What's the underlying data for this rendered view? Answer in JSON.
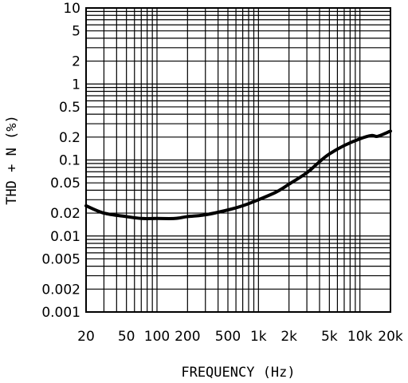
{
  "chart_data": {
    "type": "line",
    "title": "",
    "xlabel": "FREQUENCY (Hz)",
    "ylabel": "THD + N (%)",
    "x_scale": "log",
    "y_scale": "log",
    "xlim": [
      20,
      20000
    ],
    "ylim": [
      0.001,
      10
    ],
    "grid": true,
    "x_ticks": [
      {
        "value": 20,
        "label": "20"
      },
      {
        "value": 50,
        "label": "50"
      },
      {
        "value": 100,
        "label": "100"
      },
      {
        "value": 200,
        "label": "200"
      },
      {
        "value": 500,
        "label": "500"
      },
      {
        "value": 1000,
        "label": "1k"
      },
      {
        "value": 2000,
        "label": "2k"
      },
      {
        "value": 5000,
        "label": "5k"
      },
      {
        "value": 10000,
        "label": "10k"
      },
      {
        "value": 20000,
        "label": "20k"
      }
    ],
    "y_ticks": [
      {
        "value": 10,
        "label": "10"
      },
      {
        "value": 5,
        "label": "5"
      },
      {
        "value": 2,
        "label": "2"
      },
      {
        "value": 1,
        "label": "1"
      },
      {
        "value": 0.5,
        "label": "0.5"
      },
      {
        "value": 0.2,
        "label": "0.2"
      },
      {
        "value": 0.1,
        "label": "0.1"
      },
      {
        "value": 0.05,
        "label": "0.05"
      },
      {
        "value": 0.02,
        "label": "0.02"
      },
      {
        "value": 0.01,
        "label": "0.01"
      },
      {
        "value": 0.005,
        "label": "0.005"
      },
      {
        "value": 0.002,
        "label": "0.002"
      },
      {
        "value": 0.001,
        "label": "0.001"
      }
    ],
    "series": [
      {
        "color": "#000000",
        "x": [
          20,
          30,
          50,
          70,
          100,
          150,
          200,
          300,
          500,
          700,
          1000,
          1500,
          2000,
          3000,
          4000,
          5000,
          7000,
          10000,
          13000,
          15000,
          20000
        ],
        "y": [
          0.025,
          0.02,
          0.018,
          0.017,
          0.017,
          0.017,
          0.018,
          0.019,
          0.022,
          0.025,
          0.03,
          0.038,
          0.048,
          0.068,
          0.095,
          0.12,
          0.155,
          0.19,
          0.21,
          0.205,
          0.24
        ]
      }
    ]
  }
}
